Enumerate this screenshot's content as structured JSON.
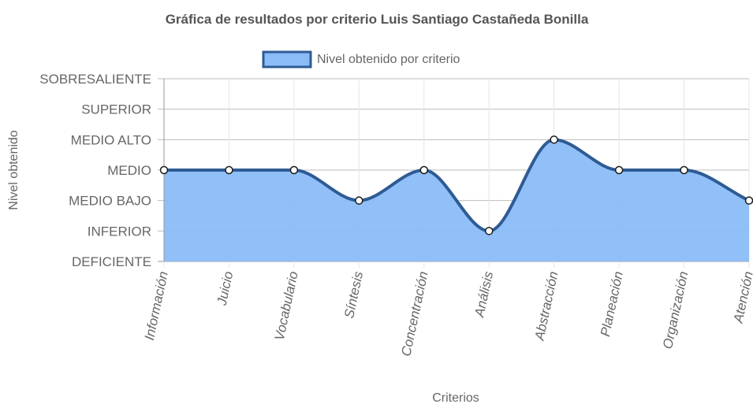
{
  "chart_data": {
    "type": "area",
    "title": "Gráfica de resultados por criterio Luis Santiago Castañeda Bonilla",
    "xlabel": "Criterios",
    "ylabel": "Nivel obtenido",
    "categories": [
      "Información",
      "Juicio",
      "Vocabulario",
      "Síntesis",
      "Concentración",
      "Análisis",
      "Abstracción",
      "Planeación",
      "Organización",
      "Atención"
    ],
    "y_levels": [
      "DEFICIENTE",
      "INFERIOR",
      "MEDIO BAJO",
      "MEDIO",
      "MEDIO ALTO",
      "SUPERIOR",
      "SOBRESALIENTE"
    ],
    "ylim": [
      0,
      6
    ],
    "series": [
      {
        "name": "Nivel obtenido por criterio",
        "values": [
          3,
          3,
          3,
          2,
          3,
          1,
          4,
          3,
          3,
          2
        ],
        "values_labels": [
          "MEDIO",
          "MEDIO",
          "MEDIO",
          "MEDIO BAJO",
          "MEDIO",
          "INFERIOR",
          "MEDIO ALTO",
          "MEDIO",
          "MEDIO",
          "MEDIO BAJO"
        ]
      }
    ],
    "grid": true,
    "legend_position": "top",
    "colors": {
      "fill": "#8bbcf7",
      "line": "#2f5b94",
      "point_fill": "#ffffff",
      "point_stroke": "#1a1a1a",
      "grid": "#e5e5e5",
      "axis": "#666666",
      "text": "#666666",
      "title": "#555555"
    }
  }
}
